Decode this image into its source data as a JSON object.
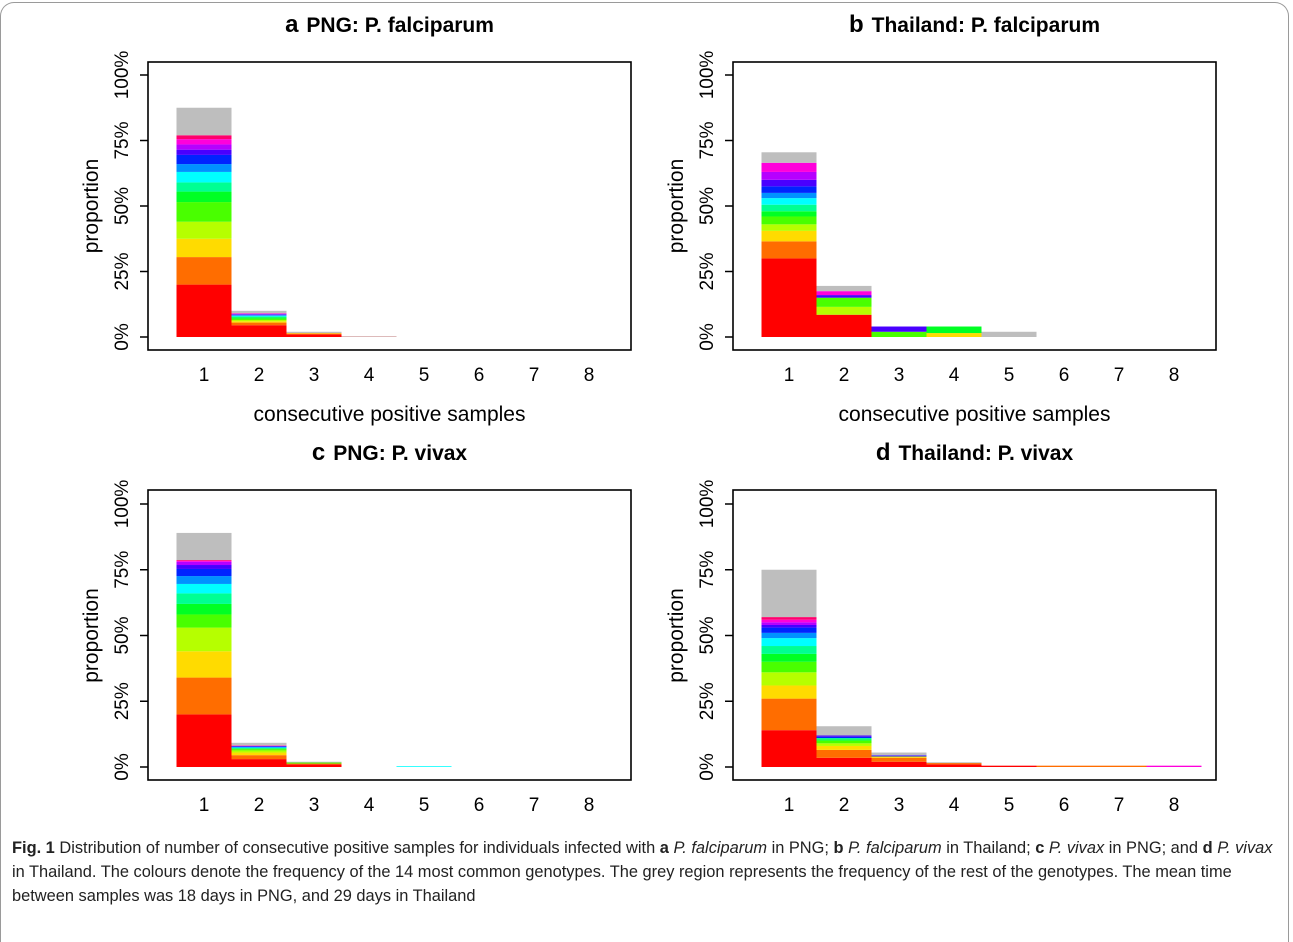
{
  "chart_data": [
    {
      "type": "bar",
      "stacked": true,
      "panel": "a",
      "title": "PNG: P. falciparum",
      "x_label": "consecutive positive samples",
      "y_label": "proportion",
      "categories": [
        "1",
        "2",
        "3",
        "4",
        "5",
        "6",
        "7",
        "8"
      ],
      "ylim": [
        0,
        100
      ],
      "yticks": [
        {
          "value": 0,
          "label": "0%"
        },
        {
          "value": 25,
          "label": "25%"
        },
        {
          "value": 50,
          "label": "50%"
        },
        {
          "value": 75,
          "label": "75%"
        },
        {
          "value": 100,
          "label": "100%"
        }
      ],
      "series": [
        {
          "color": "#FF0000",
          "values": [
            20,
            4.5,
            1,
            0.1,
            0,
            0,
            0,
            0
          ]
        },
        {
          "color": "#FF6D00",
          "values": [
            10.5,
            1,
            0.3,
            0,
            0,
            0,
            0,
            0
          ]
        },
        {
          "color": "#FFDB00",
          "values": [
            7,
            0.5,
            0.2,
            0,
            0,
            0,
            0,
            0
          ]
        },
        {
          "color": "#B6FF00",
          "values": [
            6.5,
            0.5,
            0,
            0,
            0,
            0,
            0,
            0
          ]
        },
        {
          "color": "#49FF00",
          "values": [
            7.5,
            0.5,
            0,
            0,
            0,
            0,
            0,
            0
          ]
        },
        {
          "color": "#00FF24",
          "values": [
            4,
            0.5,
            0,
            0,
            0,
            0,
            0,
            0
          ]
        },
        {
          "color": "#00FF92",
          "values": [
            3.5,
            0.3,
            0,
            0,
            0,
            0,
            0,
            0
          ]
        },
        {
          "color": "#00FFFF",
          "values": [
            4,
            0.3,
            0,
            0,
            0,
            0,
            0,
            0
          ]
        },
        {
          "color": "#0092FF",
          "values": [
            3,
            0.2,
            0,
            0,
            0,
            0,
            0,
            0
          ]
        },
        {
          "color": "#0024FF",
          "values": [
            3.5,
            0.2,
            0,
            0,
            0,
            0,
            0,
            0
          ]
        },
        {
          "color": "#4900FF",
          "values": [
            2,
            0.2,
            0,
            0,
            0,
            0,
            0,
            0
          ]
        },
        {
          "color": "#B600FF",
          "values": [
            2,
            0.2,
            0,
            0,
            0,
            0,
            0,
            0
          ]
        },
        {
          "color": "#FF00DB",
          "values": [
            2,
            0.1,
            0,
            0,
            0,
            0,
            0,
            0
          ]
        },
        {
          "color": "#FF006D",
          "values": [
            1.5,
            0.1,
            0,
            0,
            0,
            0,
            0,
            0
          ]
        },
        {
          "color": "#BEBEBE",
          "values": [
            10.5,
            0.9,
            0.5,
            0.2,
            0,
            0,
            0,
            0
          ]
        }
      ]
    },
    {
      "type": "bar",
      "stacked": true,
      "panel": "b",
      "title": "Thailand: P. falciparum",
      "x_label": "consecutive positive samples",
      "y_label": "proportion",
      "categories": [
        "1",
        "2",
        "3",
        "4",
        "5",
        "6",
        "7",
        "8"
      ],
      "ylim": [
        0,
        100
      ],
      "yticks": [
        {
          "value": 0,
          "label": "0%"
        },
        {
          "value": 25,
          "label": "25%"
        },
        {
          "value": 50,
          "label": "50%"
        },
        {
          "value": 75,
          "label": "75%"
        },
        {
          "value": 100,
          "label": "100%"
        }
      ],
      "series": [
        {
          "color": "#FF0000",
          "values": [
            30,
            8.5,
            0,
            0,
            0,
            0,
            0,
            0
          ]
        },
        {
          "color": "#FF6D00",
          "values": [
            6.5,
            0,
            0,
            0,
            0,
            0,
            0,
            0
          ]
        },
        {
          "color": "#FFDB00",
          "values": [
            4,
            0,
            0,
            1.5,
            0,
            0,
            0,
            0
          ]
        },
        {
          "color": "#B6FF00",
          "values": [
            2.5,
            3,
            0,
            0,
            0,
            0,
            0,
            0
          ]
        },
        {
          "color": "#49FF00",
          "values": [
            3,
            3.5,
            2,
            0,
            0,
            0,
            0,
            0
          ]
        },
        {
          "color": "#00FF24",
          "values": [
            2,
            0,
            0,
            2.5,
            0,
            0,
            0,
            0
          ]
        },
        {
          "color": "#00FF92",
          "values": [
            2.5,
            0,
            0,
            0,
            0,
            0,
            0,
            0
          ]
        },
        {
          "color": "#00FFFF",
          "values": [
            2.5,
            0,
            0,
            0,
            0,
            0,
            0,
            0
          ]
        },
        {
          "color": "#0092FF",
          "values": [
            2,
            0,
            0,
            0,
            0,
            0,
            0,
            0
          ]
        },
        {
          "color": "#0024FF",
          "values": [
            2.5,
            0,
            0,
            0,
            0,
            0,
            0,
            0
          ]
        },
        {
          "color": "#4900FF",
          "values": [
            2.5,
            1,
            2,
            0,
            0,
            0,
            0,
            0
          ]
        },
        {
          "color": "#B600FF",
          "values": [
            3,
            0,
            0,
            0,
            0,
            0,
            0,
            0
          ]
        },
        {
          "color": "#FF00DB",
          "values": [
            3.5,
            1.5,
            0,
            0,
            0,
            0,
            0,
            0
          ]
        },
        {
          "color": "#FF006D",
          "values": [
            0,
            0,
            0,
            0,
            0,
            0,
            0,
            0
          ]
        },
        {
          "color": "#BEBEBE",
          "values": [
            4,
            2,
            0,
            0,
            2,
            0,
            0,
            0
          ]
        }
      ]
    },
    {
      "type": "bar",
      "stacked": true,
      "panel": "c",
      "title": "PNG: P. vivax",
      "x_label": "consecutive positive samples",
      "y_label": "proportion",
      "categories": [
        "1",
        "2",
        "3",
        "4",
        "5",
        "6",
        "7",
        "8"
      ],
      "ylim": [
        0,
        100
      ],
      "yticks": [
        {
          "value": 0,
          "label": "0%"
        },
        {
          "value": 25,
          "label": "25%"
        },
        {
          "value": 50,
          "label": "50%"
        },
        {
          "value": 75,
          "label": "75%"
        },
        {
          "value": 100,
          "label": "100%"
        }
      ],
      "series": [
        {
          "color": "#FF0000",
          "values": [
            20,
            3,
            1,
            0,
            0,
            0,
            0,
            0
          ]
        },
        {
          "color": "#FF6D00",
          "values": [
            14,
            1.5,
            0.3,
            0,
            0,
            0,
            0,
            0
          ]
        },
        {
          "color": "#FFDB00",
          "values": [
            10,
            1,
            0,
            0,
            0,
            0,
            0,
            0
          ]
        },
        {
          "color": "#B6FF00",
          "values": [
            9,
            0.8,
            0,
            0,
            0,
            0,
            0,
            0
          ]
        },
        {
          "color": "#49FF00",
          "values": [
            5,
            0.5,
            0.4,
            0,
            0,
            0,
            0,
            0
          ]
        },
        {
          "color": "#00FF24",
          "values": [
            4,
            0.2,
            0,
            0,
            0,
            0,
            0,
            0
          ]
        },
        {
          "color": "#00FF92",
          "values": [
            4,
            0.2,
            0,
            0,
            0,
            0,
            0,
            0
          ]
        },
        {
          "color": "#00FFFF",
          "values": [
            3.6,
            0.2,
            0,
            0,
            0.3,
            0,
            0,
            0
          ]
        },
        {
          "color": "#0092FF",
          "values": [
            3,
            0.2,
            0,
            0,
            0,
            0,
            0,
            0
          ]
        },
        {
          "color": "#0024FF",
          "values": [
            2.7,
            0.2,
            0,
            0,
            0,
            0,
            0,
            0
          ]
        },
        {
          "color": "#4900FF",
          "values": [
            1.5,
            0.1,
            0,
            0,
            0,
            0,
            0,
            0
          ]
        },
        {
          "color": "#B600FF",
          "values": [
            1.2,
            0.1,
            0,
            0,
            0,
            0,
            0,
            0
          ]
        },
        {
          "color": "#FF00DB",
          "values": [
            0.4,
            0.1,
            0,
            0,
            0,
            0,
            0,
            0
          ]
        },
        {
          "color": "#FF006D",
          "values": [
            0.3,
            0.1,
            0,
            0,
            0,
            0,
            0,
            0
          ]
        },
        {
          "color": "#BEBEBE",
          "values": [
            10.3,
            1,
            0.3,
            0,
            0,
            0,
            0,
            0
          ]
        }
      ]
    },
    {
      "type": "bar",
      "stacked": true,
      "panel": "d",
      "title": "Thailand: P. vivax",
      "x_label": "consecutive positive samples",
      "y_label": "proportion",
      "categories": [
        "1",
        "2",
        "3",
        "4",
        "5",
        "6",
        "7",
        "8"
      ],
      "ylim": [
        0,
        100
      ],
      "yticks": [
        {
          "value": 0,
          "label": "0%"
        },
        {
          "value": 25,
          "label": "25%"
        },
        {
          "value": 50,
          "label": "50%"
        },
        {
          "value": 75,
          "label": "75%"
        },
        {
          "value": 100,
          "label": "100%"
        }
      ],
      "series": [
        {
          "color": "#FF0000",
          "values": [
            14,
            3.5,
            2,
            1,
            0.5,
            0,
            0,
            0
          ]
        },
        {
          "color": "#FF6D00",
          "values": [
            12,
            3,
            1.5,
            0.5,
            0,
            0.5,
            0.5,
            0
          ]
        },
        {
          "color": "#FFDB00",
          "values": [
            5,
            1.5,
            0.5,
            0,
            0,
            0,
            0,
            0
          ]
        },
        {
          "color": "#B6FF00",
          "values": [
            5,
            1,
            0,
            0,
            0,
            0,
            0,
            0
          ]
        },
        {
          "color": "#49FF00",
          "values": [
            4,
            1,
            0,
            0,
            0,
            0,
            0,
            0
          ]
        },
        {
          "color": "#00FF24",
          "values": [
            3,
            0.5,
            0,
            0,
            0,
            0,
            0,
            0
          ]
        },
        {
          "color": "#00FF92",
          "values": [
            3,
            0.5,
            0,
            0,
            0,
            0,
            0,
            0
          ]
        },
        {
          "color": "#00FFFF",
          "values": [
            3,
            0,
            0,
            0,
            0,
            0,
            0,
            0
          ]
        },
        {
          "color": "#0092FF",
          "values": [
            2,
            0,
            0,
            0,
            0,
            0,
            0,
            0
          ]
        },
        {
          "color": "#0024FF",
          "values": [
            2,
            0.5,
            0.3,
            0,
            0,
            0,
            0,
            0
          ]
        },
        {
          "color": "#4900FF",
          "values": [
            1,
            0.5,
            0.2,
            0,
            0,
            0,
            0,
            0
          ]
        },
        {
          "color": "#B600FF",
          "values": [
            1,
            0,
            0,
            0,
            0,
            0,
            0,
            0
          ]
        },
        {
          "color": "#FF00DB",
          "values": [
            1,
            0,
            0,
            0,
            0,
            0,
            0,
            0.5
          ]
        },
        {
          "color": "#FF006D",
          "values": [
            1,
            0,
            0,
            0,
            0,
            0,
            0,
            0
          ]
        },
        {
          "color": "#BEBEBE",
          "values": [
            18,
            3.5,
            1,
            0.3,
            0,
            0,
            0,
            0
          ]
        }
      ]
    }
  ],
  "caption": {
    "label": "Fig. 1",
    "runs": [
      {
        "text": "Distribution of number of consecutive positive samples for individuals infected with",
        "style": "normal"
      },
      {
        "text": "a",
        "style": "bold"
      },
      {
        "text": "P. falciparum",
        "style": "italic"
      },
      {
        "text": "in PNG;",
        "style": "normal"
      },
      {
        "text": "b",
        "style": "bold"
      },
      {
        "text": "P. falciparum",
        "style": "italic"
      },
      {
        "text": "in Thailand;",
        "style": "normal"
      },
      {
        "text": "c",
        "style": "bold"
      },
      {
        "text": "P. vivax",
        "style": "italic"
      },
      {
        "text": "in PNG; and",
        "style": "normal"
      },
      {
        "text": "d",
        "style": "bold"
      },
      {
        "text": "P. vivax",
        "style": "italic"
      },
      {
        "text": "in Thailand. The colours denote the frequency of the 14 most common genotypes. The grey region represents the frequency of the rest of the genotypes. The mean time between samples was 18 days in PNG, and 29 days in Thailand",
        "style": "normal"
      }
    ]
  }
}
